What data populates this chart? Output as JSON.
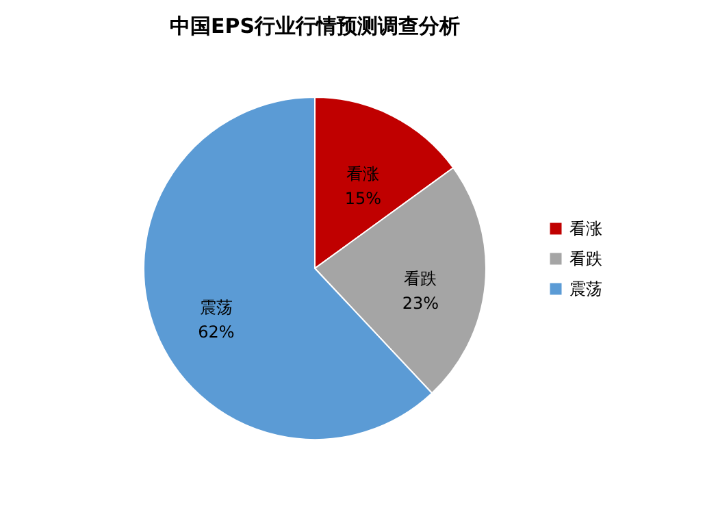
{
  "chart_data": {
    "type": "pie",
    "title": "中国EPS行业行情预测调查分析",
    "categories": [
      "看涨",
      "看跌",
      "震荡"
    ],
    "values": [
      15,
      23,
      62
    ],
    "value_labels": [
      "15%",
      "23%",
      "62%"
    ],
    "colors": [
      "#c00000",
      "#a5a5a5",
      "#5b9bd5"
    ],
    "legend": "right"
  }
}
